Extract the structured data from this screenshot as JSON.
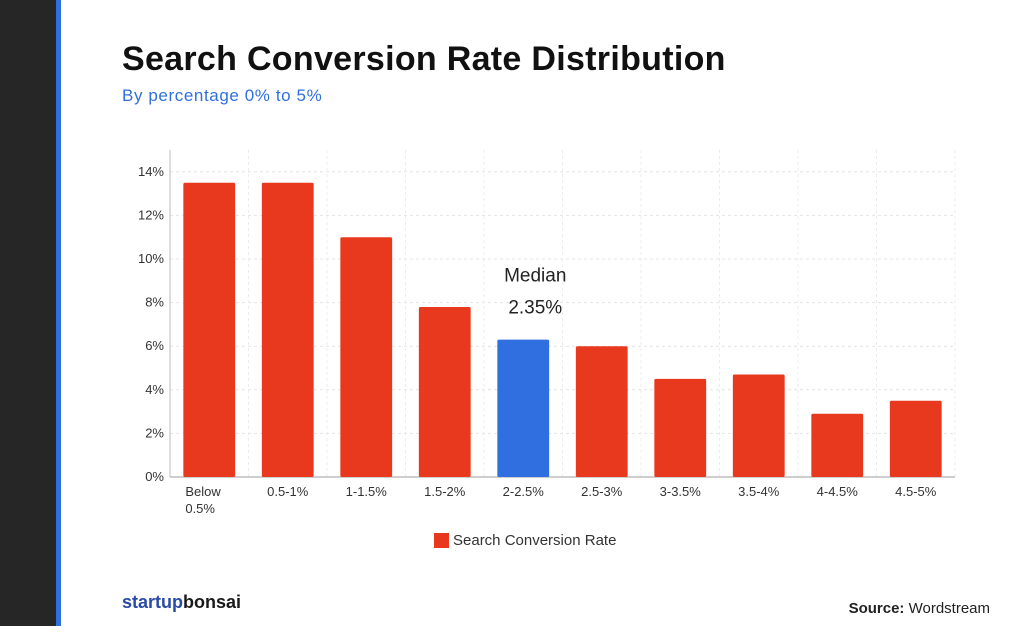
{
  "header": {
    "title": "Search Conversion Rate Distribution",
    "subtitle": "By percentage 0% to 5%"
  },
  "colors": {
    "bar_default": "#e8381d",
    "bar_highlight": "#2f6fe0",
    "accent": "#2f6fe0"
  },
  "chart_data": {
    "type": "bar",
    "categories": [
      [
        "Below",
        "0.5%"
      ],
      [
        "0.5-1%"
      ],
      [
        "1-1.5%"
      ],
      [
        "1.5-2%"
      ],
      [
        "2-2.5%"
      ],
      [
        "2.5-3%"
      ],
      [
        "3-3.5%"
      ],
      [
        "3.5-4%"
      ],
      [
        "4-4.5%"
      ],
      [
        "4.5-5%"
      ]
    ],
    "series": [
      {
        "name": "Search Conversion Rate",
        "values": [
          13.5,
          13.5,
          11.0,
          7.8,
          6.3,
          6.0,
          4.5,
          4.7,
          2.9,
          3.5
        ]
      }
    ],
    "highlight_index": 4,
    "ylim": [
      0,
      15
    ],
    "yticks": [
      0,
      2,
      4,
      6,
      8,
      10,
      12,
      14
    ],
    "ytick_labels": [
      "0%",
      "2%",
      "4%",
      "6%",
      "8%",
      "10%",
      "12%",
      "14%"
    ],
    "grid": true,
    "legend_position": "bottom",
    "annotation": {
      "index": 4,
      "lines": [
        "Median",
        "2.35%"
      ]
    }
  },
  "footer": {
    "brand_part1": "startup",
    "brand_part2": "bonsai",
    "source_label": "Source:",
    "source_value": " Wordstream"
  }
}
